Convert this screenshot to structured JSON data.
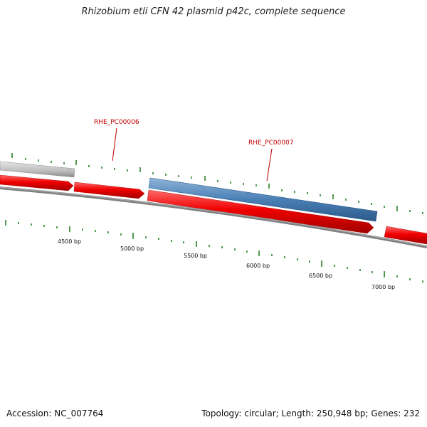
{
  "title": "Rhizobium etli CFN 42 plasmid p42c, complete sequence",
  "accession": "Accession: NC_007764",
  "summary": "Topology: circular; Length: 250,948 bp; Genes: 232",
  "gene_labels": [
    "RHE_PC00006",
    "RHE_PC00007"
  ],
  "scale_labels": [
    "4500 bp",
    "5000 bp",
    "5500 bp",
    "6000 bp",
    "6500 bp",
    "7000 bp"
  ],
  "colors": {
    "forward_cds": "#e60000",
    "gene_blue": "#4a7fb5",
    "gene_gray": "#bdbdbd",
    "backbone": "#808080",
    "tick": "#1a7a1a",
    "label": "#c00000"
  }
}
